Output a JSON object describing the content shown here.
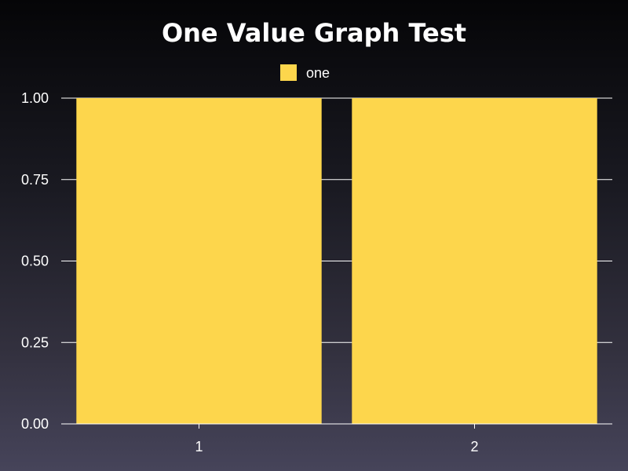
{
  "chart_data": {
    "type": "bar",
    "title": "One Value Graph Test",
    "xlabel": "",
    "ylabel": "",
    "categories": [
      "1",
      "2"
    ],
    "series": [
      {
        "name": "one",
        "values": [
          1,
          1
        ],
        "color": "#FDD64C"
      }
    ],
    "ylim": [
      0,
      1
    ],
    "yticks": [
      "0.00",
      "0.25",
      "0.50",
      "0.75",
      "1.00"
    ],
    "yticks_values": [
      0,
      0.25,
      0.5,
      0.75,
      1
    ],
    "grid": true,
    "legend_position": "top-center"
  },
  "colors": {
    "background_top": "#050507",
    "background_bottom": "#46445a",
    "text": "#ffffff",
    "grid": "#ffffff",
    "bar": "#FDD64C"
  }
}
